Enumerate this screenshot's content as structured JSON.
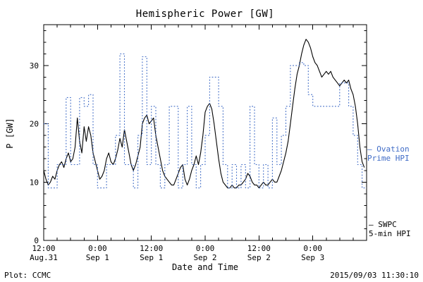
{
  "footer": {
    "left": "Plot: CCMC",
    "right": "2015/09/03 11:30:10"
  },
  "chart_data": {
    "type": "line",
    "title": "Hemispheric Power [GW]",
    "xlabel": "Date and Time",
    "ylabel": "P [GW]",
    "ylim": [
      0,
      37
    ],
    "x_range_hours": [
      0,
      72
    ],
    "x_minor_step": 3,
    "y_minor_step": 2,
    "y_ticks": [
      0,
      10,
      20,
      30
    ],
    "x_ticks": [
      {
        "hours": 0,
        "time": "12:00",
        "date": "Aug.31"
      },
      {
        "hours": 12,
        "time": "0:00",
        "date": "Sep 1"
      },
      {
        "hours": 24,
        "time": "12:00",
        "date": "Sep 1"
      },
      {
        "hours": 36,
        "time": "0:00",
        "date": "Sep 2"
      },
      {
        "hours": 48,
        "time": "12:00",
        "date": "Sep 2"
      },
      {
        "hours": 60,
        "time": "0:00",
        "date": "Sep 3"
      }
    ],
    "series": [
      {
        "id": "swpc-5min-hpi",
        "name": "SWPC 5-min HPI",
        "color": "#000000",
        "line": "solid",
        "interpolation": "linear",
        "x_start": 0,
        "x_step": 0.5,
        "values": [
          12,
          10.5,
          9.5,
          10,
          11,
          10.5,
          12,
          13,
          13.5,
          12.5,
          14,
          15,
          13.5,
          14,
          16,
          21,
          17,
          15,
          19.5,
          17,
          19.5,
          18,
          15,
          13.5,
          12,
          10.5,
          11,
          12,
          14,
          15,
          13.5,
          13,
          14,
          15.5,
          17.5,
          16,
          19,
          17,
          15,
          13,
          12,
          13,
          14.5,
          16,
          20,
          21,
          21.5,
          20,
          20.5,
          21,
          18,
          16,
          14,
          12,
          11,
          10.5,
          10,
          9.5,
          9.5,
          10.5,
          11.5,
          12.5,
          13,
          10.5,
          9.5,
          10.5,
          12,
          13,
          14.5,
          13,
          15,
          18,
          22,
          23,
          23.5,
          22.5,
          20,
          17,
          14,
          11.5,
          10,
          9.5,
          9,
          9,
          9.5,
          9,
          9,
          9.5,
          9.5,
          10,
          10.5,
          11.5,
          11,
          10,
          9.5,
          9.5,
          9,
          9.5,
          10,
          9.5,
          9.5,
          10,
          10.5,
          10,
          10,
          11,
          12,
          13.5,
          15,
          17,
          20,
          23,
          26,
          28.5,
          30,
          32,
          33.5,
          34.5,
          34,
          33,
          31.5,
          30.5,
          30,
          29,
          28,
          28.5,
          29,
          28.5,
          29,
          28,
          27.5,
          27,
          26.5,
          27,
          27.5,
          27,
          27.5,
          26,
          25,
          23,
          20,
          16,
          13.5,
          12.5
        ]
      },
      {
        "id": "ovation-prime-hpi",
        "name": "Ovation Prime HPI",
        "color": "#3f6bc6",
        "line": "dotted",
        "interpolation": "step",
        "x_start": 0,
        "x_step": 1,
        "values": [
          20,
          9,
          9,
          13,
          13,
          24.5,
          13,
          13,
          24.5,
          23,
          25,
          13,
          9,
          9,
          13,
          13,
          18,
          32,
          13,
          13,
          9,
          18,
          31.5,
          13,
          23,
          13,
          9,
          13,
          23,
          23,
          9,
          13,
          23,
          13,
          9,
          13,
          18,
          28,
          28,
          23,
          13,
          9,
          13,
          9,
          13,
          9,
          23,
          13,
          9,
          13,
          9,
          21,
          13,
          18,
          23,
          30,
          30,
          30.5,
          30,
          25,
          23,
          23,
          23,
          23,
          23,
          23,
          27,
          27,
          23,
          18,
          13,
          9
        ]
      }
    ],
    "annotations": [
      {
        "line1": "– Ovation",
        "line2": "Prime HPI",
        "color": "#3f6bc6"
      },
      {
        "line1": "— SWPC",
        "line2": "5-min HPI",
        "color": "#000000"
      }
    ]
  }
}
